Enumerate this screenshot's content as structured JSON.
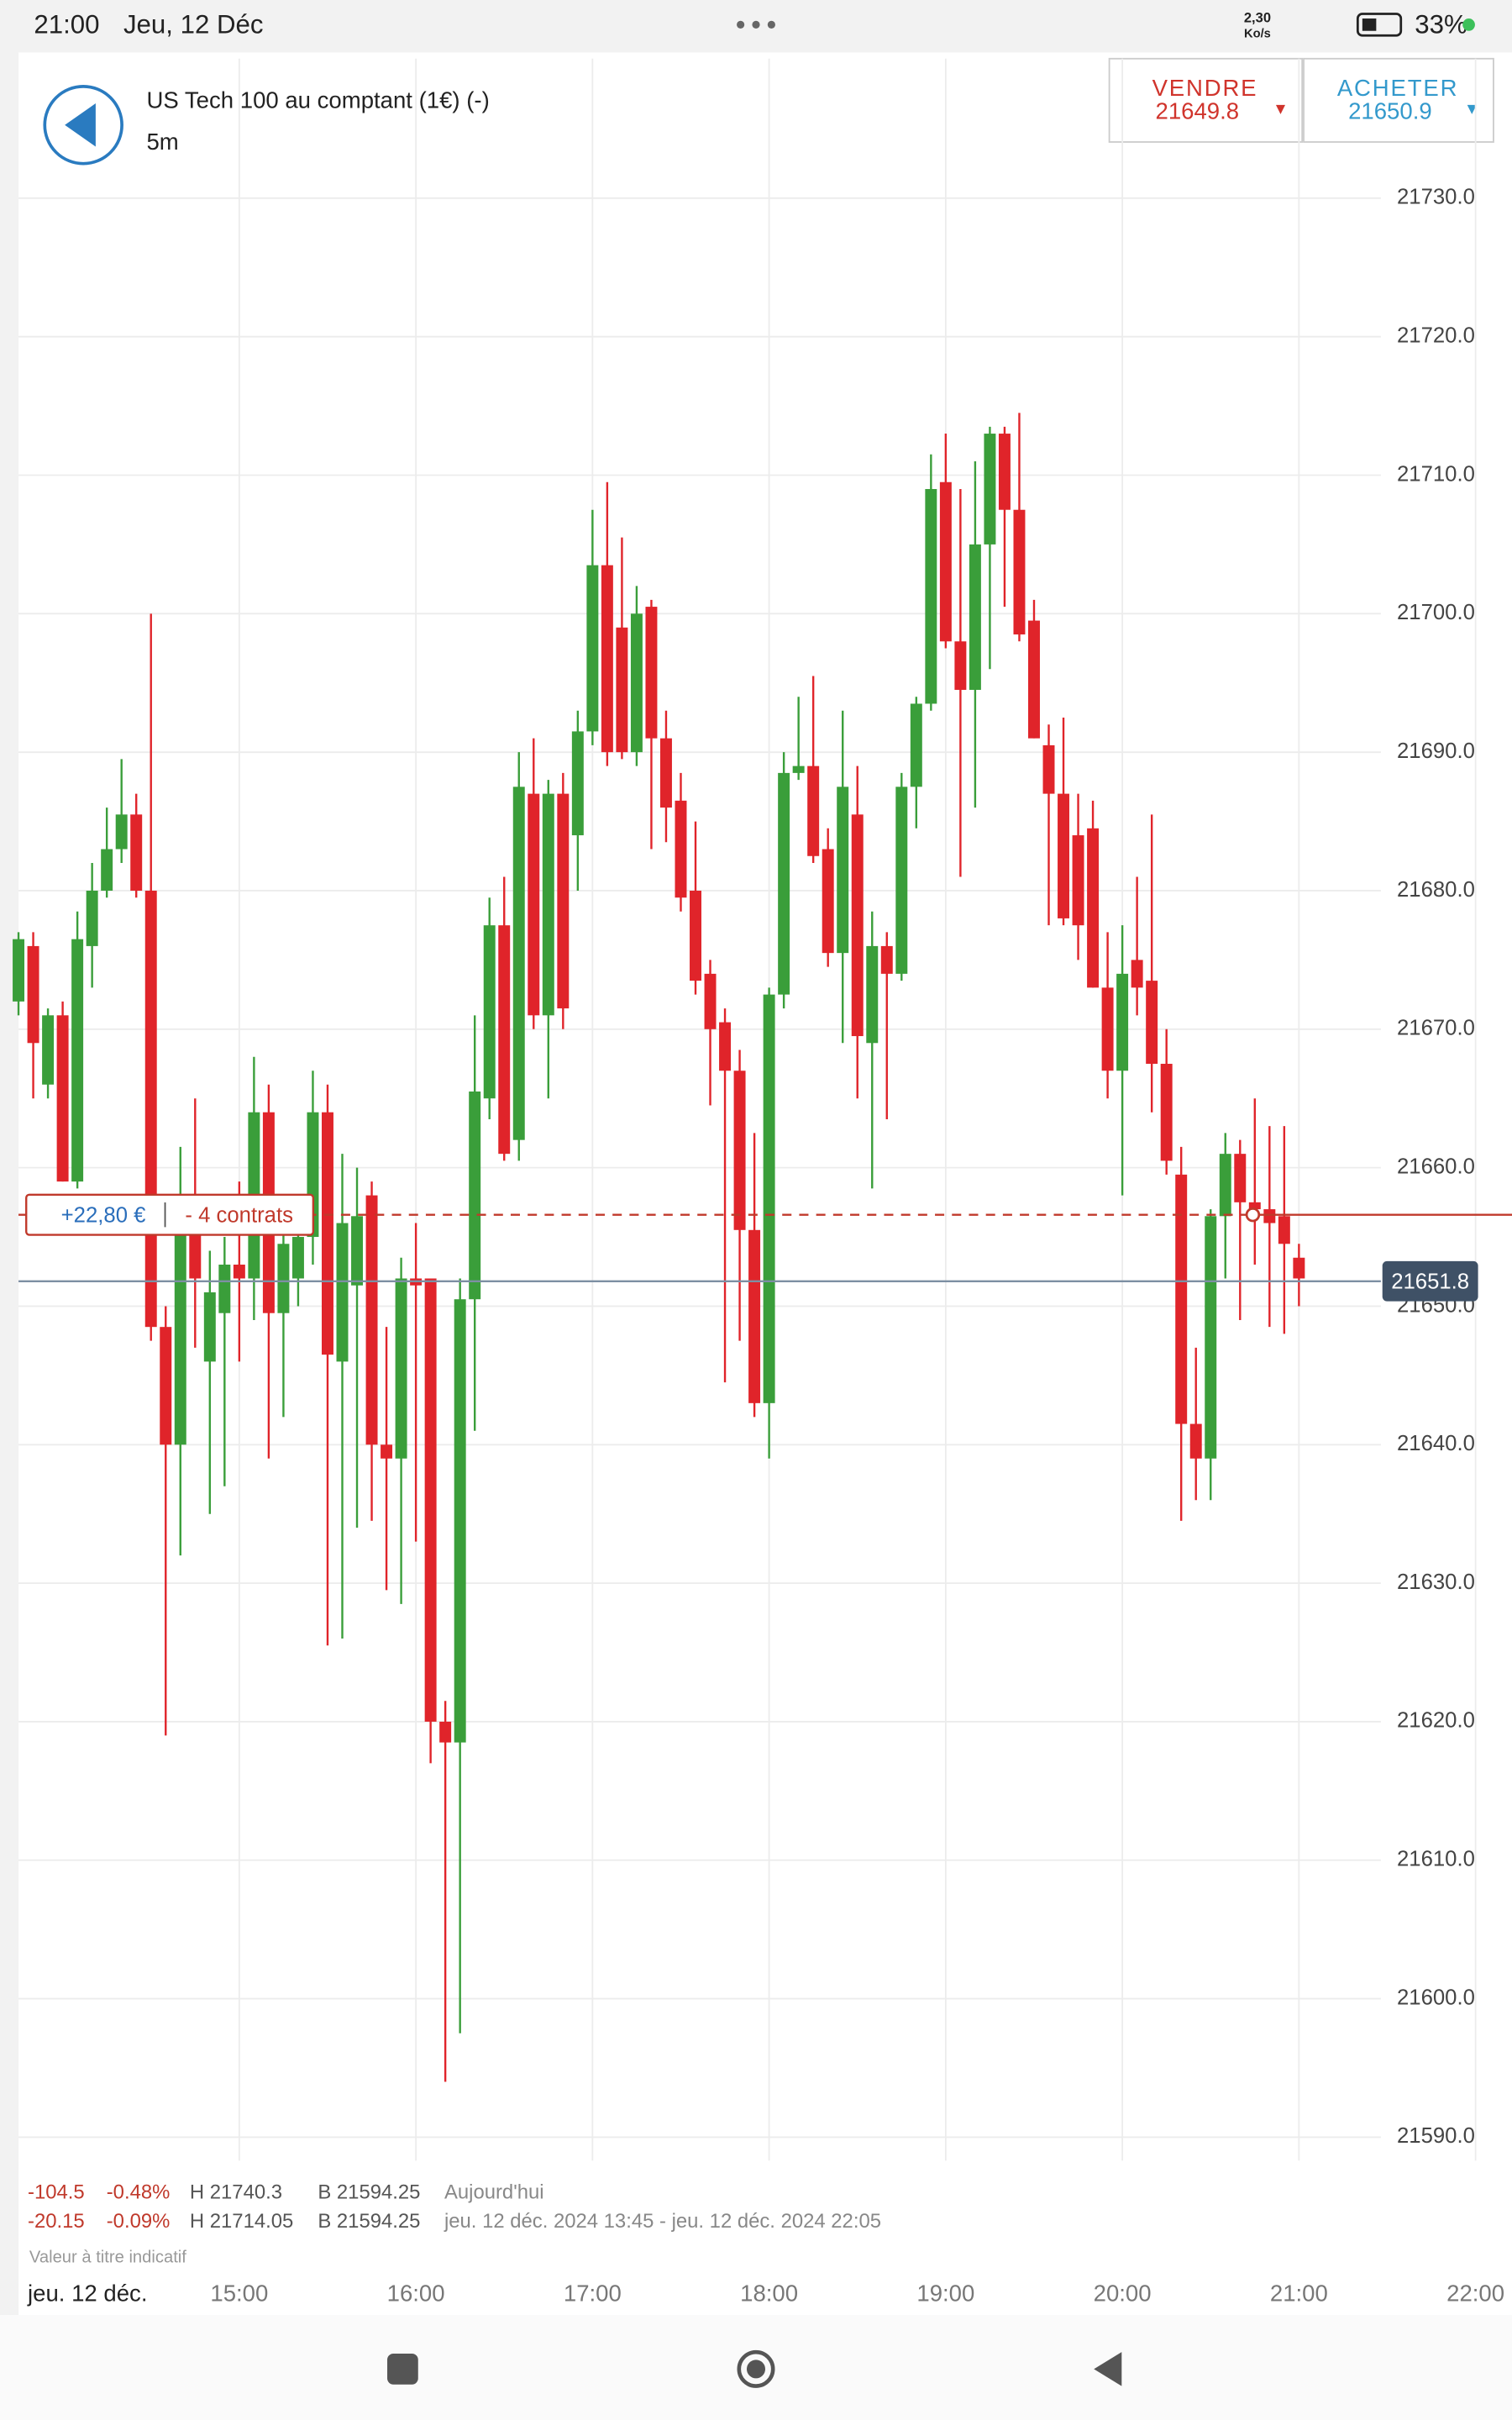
{
  "status_bar": {
    "time": "21:00",
    "date": "Jeu, 12 Déc",
    "speed": "2,30",
    "speed_unit": "Ko/s",
    "battery": "33%"
  },
  "header": {
    "instrument": "US Tech 100 au comptant (1€) (-)",
    "interval": "5m",
    "sell_label": "VENDRE",
    "sell_price": "21649.8",
    "buy_label": "ACHETER",
    "buy_price": "21650.9"
  },
  "chart_data": {
    "type": "candlestick",
    "up_color": "#3a9e3a",
    "down_color": "#e0242a",
    "x": [
      "13:45",
      "13:50",
      "13:55",
      "14:00",
      "14:05",
      "14:10",
      "14:15",
      "14:20",
      "14:25",
      "14:30",
      "14:35",
      "14:40",
      "14:45",
      "14:50",
      "14:55",
      "15:00",
      "15:05",
      "15:10",
      "15:15",
      "15:20",
      "15:25",
      "15:30",
      "15:35",
      "15:40",
      "15:45",
      "15:50",
      "15:55",
      "16:00",
      "16:05",
      "16:10",
      "16:15",
      "16:20",
      "16:25",
      "16:30",
      "16:35",
      "16:40",
      "16:45",
      "16:50",
      "16:55",
      "17:00",
      "17:05",
      "17:10",
      "17:15",
      "17:20",
      "17:25",
      "17:30",
      "17:35",
      "17:40",
      "17:45",
      "17:50",
      "17:55",
      "18:00",
      "18:05",
      "18:10",
      "18:15",
      "18:20",
      "18:25",
      "18:30",
      "18:35",
      "18:40",
      "18:45",
      "18:50",
      "18:55",
      "19:00",
      "19:05",
      "19:10",
      "19:15",
      "19:20",
      "19:25",
      "19:30",
      "19:35",
      "19:40",
      "19:45",
      "19:50",
      "19:55",
      "20:00",
      "20:05",
      "20:10",
      "20:15",
      "20:20",
      "20:25",
      "20:30",
      "20:35",
      "20:40",
      "20:45",
      "20:50",
      "20:55",
      "21:00"
    ],
    "open": [
      21672,
      21676,
      21666,
      21671,
      21659,
      21676,
      21680,
      21683,
      21685.5,
      21680,
      21648.5,
      21640,
      21657,
      21646,
      21649.5,
      21653,
      21652,
      21664,
      21649.5,
      21652,
      21655,
      21664,
      21646,
      21651.5,
      21658,
      21640,
      21639,
      21652,
      21652,
      21620,
      21618.5,
      21650.5,
      21665,
      21677.5,
      21662,
      21687,
      21671,
      21687,
      21684,
      21691.5,
      21703.5,
      21699,
      21690,
      21700.5,
      21691,
      21686.5,
      21680,
      21674,
      21670.5,
      21667,
      21655.5,
      21643,
      21672.5,
      21688.5,
      21689,
      21683,
      21675.5,
      21685.5,
      21669,
      21676,
      21674,
      21687.5,
      21693.5,
      21709.5,
      21698,
      21694.5,
      21705,
      21713,
      21707.5,
      21699.5,
      21690.5,
      21687,
      21684,
      21684.5,
      21673,
      21667,
      21675,
      21673.5,
      21667.5,
      21659.5,
      21641.5,
      21639,
      21656.5,
      21661,
      21657.5,
      21657,
      21656.5,
      21653.5
    ],
    "high": [
      21677,
      21677,
      21671.5,
      21672,
      21678.5,
      21682,
      21686,
      21689.5,
      21687,
      21700,
      21650,
      21661.5,
      21665,
      21654,
      21655,
      21659,
      21668,
      21666,
      21657,
      21656,
      21667,
      21666,
      21661,
      21660,
      21659,
      21648.5,
      21653.5,
      21656,
      21652,
      21621.5,
      21652,
      21671,
      21679.5,
      21681,
      21690,
      21691,
      21688,
      21688.5,
      21693,
      21707.5,
      21709.5,
      21705.5,
      21702,
      21701,
      21693,
      21688.5,
      21685,
      21675,
      21671.5,
      21668.5,
      21662.5,
      21673,
      21690,
      21694,
      21695.5,
      21684.5,
      21693,
      21689,
      21678.5,
      21677,
      21688.5,
      21694,
      21711.5,
      21713,
      21709,
      21711,
      21713.5,
      21713.5,
      21714.5,
      21701,
      21692,
      21692.5,
      21687,
      21686.5,
      21677,
      21677.5,
      21681,
      21685.5,
      21670,
      21661.5,
      21647,
      21657,
      21662.5,
      21662,
      21665,
      21663,
      21663,
      21654.5
    ],
    "low": [
      21671,
      21665,
      21665,
      21659,
      21658.5,
      21673,
      21679.5,
      21682,
      21679.5,
      21647.5,
      21619,
      21632,
      21647,
      21635,
      21637,
      21646,
      21649,
      21639,
      21642,
      21650,
      21653,
      21625.5,
      21626,
      21634,
      21634.5,
      21629.5,
      21628.5,
      21633,
      21617,
      21594,
      21597.5,
      21641,
      21663.5,
      21660.5,
      21660.5,
      21670,
      21665,
      21670,
      21680,
      21690.5,
      21689,
      21689.5,
      21689,
      21683,
      21683.5,
      21678.5,
      21672.5,
      21664.5,
      21644.5,
      21647.5,
      21642,
      21639,
      21671.5,
      21688,
      21682,
      21674.5,
      21669,
      21665,
      21658.5,
      21663.5,
      21673.5,
      21684.5,
      21693,
      21697.5,
      21681,
      21686,
      21696,
      21700.5,
      21698,
      21691,
      21677.5,
      21677.5,
      21675,
      21673,
      21665,
      21658,
      21671,
      21664,
      21659.5,
      21634.5,
      21636,
      21636,
      21652,
      21649,
      21653,
      21648.5,
      21648,
      21650
    ],
    "close": [
      21676.5,
      21669,
      21671,
      21659,
      21676.5,
      21680,
      21683,
      21685.5,
      21680,
      21648.5,
      21640,
      21657,
      21652,
      21651,
      21653,
      21652,
      21664,
      21649.5,
      21654.5,
      21655,
      21664,
      21646.5,
      21656,
      21656.5,
      21640,
      21639,
      21652,
      21651.5,
      21620,
      21618.5,
      21650.5,
      21665.5,
      21677.5,
      21661,
      21687.5,
      21671,
      21687,
      21671.5,
      21691.5,
      21703.5,
      21690,
      21690,
      21700,
      21691,
      21686,
      21679.5,
      21673.5,
      21670,
      21667,
      21655.5,
      21643,
      21672.5,
      21688.5,
      21689,
      21682.5,
      21675.5,
      21687.5,
      21669.5,
      21676,
      21674,
      21687.5,
      21693.5,
      21709,
      21698,
      21694.5,
      21705,
      21713,
      21707.5,
      21698.5,
      21691,
      21687,
      21678,
      21677.5,
      21673,
      21667,
      21674,
      21673,
      21667.5,
      21660.5,
      21641.5,
      21639,
      21656.5,
      21661,
      21657.5,
      21657,
      21656,
      21654.5,
      21652
    ],
    "xlim": [
      "13:45",
      "22:15"
    ],
    "xticks": [
      "15:00",
      "16:00",
      "17:00",
      "18:00",
      "19:00",
      "20:00",
      "21:00",
      "22:00"
    ],
    "x_axis_label": "jeu. 12 déc.",
    "ylim": [
      21588.3,
      21733.5
    ],
    "yticks": [
      {
        "value": 21590,
        "label": "21590.0"
      },
      {
        "value": 21600,
        "label": "21600.0"
      },
      {
        "value": 21610,
        "label": "21610.0"
      },
      {
        "value": 21620,
        "label": "21620.0"
      },
      {
        "value": 21630,
        "label": "21630.0"
      },
      {
        "value": 21640,
        "label": "21640.0"
      },
      {
        "value": 21650,
        "label": "21650.0"
      },
      {
        "value": 21660,
        "label": "21660.0"
      },
      {
        "value": 21670,
        "label": "21670.0"
      },
      {
        "value": 21680,
        "label": "21680.0"
      },
      {
        "value": 21690,
        "label": "21690.0"
      },
      {
        "value": 21700,
        "label": "21700.0"
      },
      {
        "value": 21710,
        "label": "21710.0"
      },
      {
        "value": 21720,
        "label": "21720.0"
      },
      {
        "value": 21730,
        "label": "21730.0"
      }
    ],
    "grid": true,
    "last_price": 21651.8,
    "position": {
      "pnl": "+22,80 €",
      "size": "- 4 contrats",
      "price": 21656.6
    }
  },
  "stats": {
    "rows": [
      [
        "-104.5",
        "-0.48%",
        "H 21740.3",
        "B 21594.25",
        "Aujourd'hui"
      ],
      [
        "-20.15",
        "-0.09%",
        "H 21714.05",
        "B 21594.25",
        "jeu. 12 déc. 2024 13:45 - jeu. 12 déc. 2024 22:05"
      ]
    ]
  },
  "note": "Valeur à titre indicatif"
}
